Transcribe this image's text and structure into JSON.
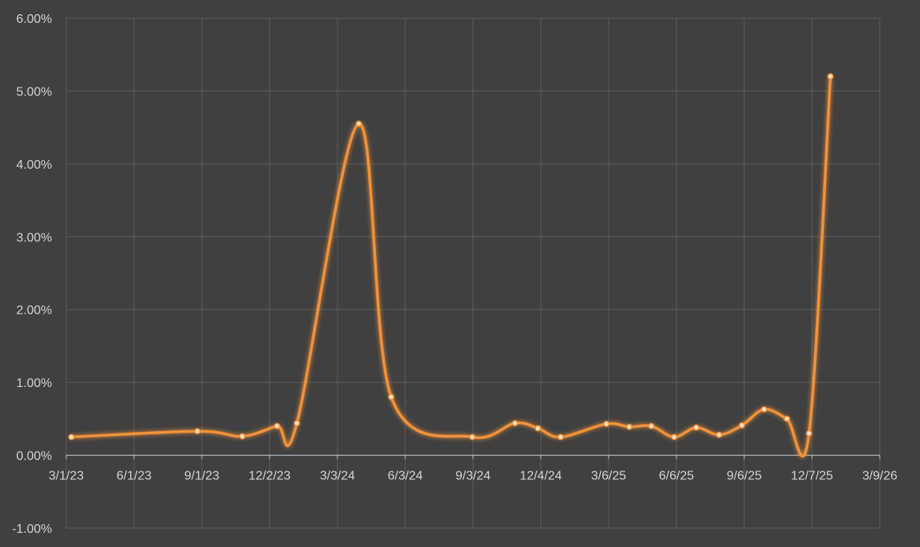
{
  "chart_data": {
    "type": "line",
    "smooth": true,
    "title": "",
    "xlabel": "",
    "ylabel": "",
    "grid": true,
    "legend": "none",
    "x_axis": {
      "range": [
        "2023-03-01",
        "2026-03-09"
      ],
      "ticks": [
        {
          "date": "2023-03-01",
          "label": "3/1/23"
        },
        {
          "date": "2023-06-01",
          "label": "6/1/23"
        },
        {
          "date": "2023-09-01",
          "label": "9/1/23"
        },
        {
          "date": "2023-12-02",
          "label": "12/2/23"
        },
        {
          "date": "2024-03-03",
          "label": "3/3/24"
        },
        {
          "date": "2024-06-03",
          "label": "6/3/24"
        },
        {
          "date": "2024-09-03",
          "label": "9/3/24"
        },
        {
          "date": "2024-12-04",
          "label": "12/4/24"
        },
        {
          "date": "2025-03-06",
          "label": "3/6/25"
        },
        {
          "date": "2025-06-06",
          "label": "6/6/25"
        },
        {
          "date": "2025-09-06",
          "label": "9/6/25"
        },
        {
          "date": "2025-12-07",
          "label": "12/7/25"
        },
        {
          "date": "2026-03-09",
          "label": "3/9/26"
        }
      ]
    },
    "y_axis": {
      "range": [
        -1.0,
        6.0
      ],
      "unit": "%",
      "ticks": [
        {
          "value": 6.0,
          "label": "6.00%"
        },
        {
          "value": 5.0,
          "label": "5.00%"
        },
        {
          "value": 4.0,
          "label": "4.00%"
        },
        {
          "value": 3.0,
          "label": "3.00%"
        },
        {
          "value": 2.0,
          "label": "2.00%"
        },
        {
          "value": 1.0,
          "label": "1.00%"
        },
        {
          "value": 0.0,
          "label": "0.00%"
        },
        {
          "value": -1.0,
          "label": "-1.00%"
        }
      ]
    },
    "series": [
      {
        "color": "#f0923a",
        "points": [
          {
            "x": "2023-03-08",
            "y": 0.25
          },
          {
            "x": "2023-08-26",
            "y": 0.33
          },
          {
            "x": "2023-10-26",
            "y": 0.26
          },
          {
            "x": "2023-12-12",
            "y": 0.4
          },
          {
            "x": "2024-01-08",
            "y": 0.44
          },
          {
            "x": "2024-04-01",
            "y": 4.55
          },
          {
            "x": "2024-05-15",
            "y": 0.8
          },
          {
            "x": "2024-09-02",
            "y": 0.25
          },
          {
            "x": "2024-10-30",
            "y": 0.44
          },
          {
            "x": "2024-11-30",
            "y": 0.37
          },
          {
            "x": "2024-12-31",
            "y": 0.25
          },
          {
            "x": "2025-03-03",
            "y": 0.43
          },
          {
            "x": "2025-04-03",
            "y": 0.39
          },
          {
            "x": "2025-05-03",
            "y": 0.4
          },
          {
            "x": "2025-06-03",
            "y": 0.25
          },
          {
            "x": "2025-07-03",
            "y": 0.38
          },
          {
            "x": "2025-08-03",
            "y": 0.28
          },
          {
            "x": "2025-09-03",
            "y": 0.41
          },
          {
            "x": "2025-10-03",
            "y": 0.63
          },
          {
            "x": "2025-11-03",
            "y": 0.5
          },
          {
            "x": "2025-12-03",
            "y": 0.3
          },
          {
            "x": "2026-01-01",
            "y": 5.2
          }
        ]
      }
    ]
  }
}
